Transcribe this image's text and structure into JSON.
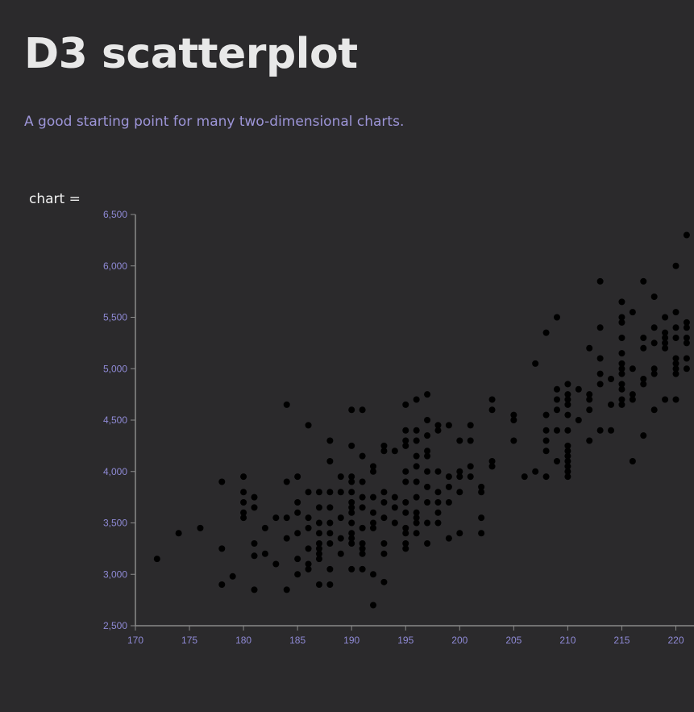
{
  "page": {
    "title": "D3 scatterplot",
    "subtitle": "A good starting point for many two-dimensional charts.",
    "cell_label": "chart ="
  },
  "colors": {
    "background": "#2b2a2c",
    "text": "#e8e8e8",
    "subtitle": "#9d95d8",
    "tick_label": "#8f8ad6",
    "axis": "#8a8a8a",
    "dot": "#000000"
  },
  "chart_data": {
    "type": "scatter",
    "title": "",
    "xlabel": "",
    "ylabel": "",
    "grid": false,
    "xlim": [
      170,
      221.5
    ],
    "ylim": [
      2500,
      6500
    ],
    "x_ticks": [
      170,
      175,
      180,
      185,
      190,
      195,
      200,
      205,
      210,
      215,
      220
    ],
    "y_ticks": [
      2500,
      3000,
      3500,
      4000,
      4500,
      5000,
      5500,
      6000,
      6500
    ],
    "x_tick_labels": [
      "170",
      "175",
      "180",
      "185",
      "190",
      "195",
      "200",
      "205",
      "210",
      "215",
      "220"
    ],
    "y_tick_labels": [
      "2,500",
      "3,000",
      "3,500",
      "4,000",
      "4,500",
      "5,000",
      "5,500",
      "6,000",
      "6,500"
    ],
    "points": [
      [
        172,
        3150
      ],
      [
        174,
        3400
      ],
      [
        176,
        3450
      ],
      [
        178,
        3250
      ],
      [
        178,
        3900
      ],
      [
        178,
        2900
      ],
      [
        179,
        2980
      ],
      [
        180,
        3950
      ],
      [
        180,
        3800
      ],
      [
        180,
        3700
      ],
      [
        180,
        3600
      ],
      [
        180,
        3550
      ],
      [
        181,
        3750
      ],
      [
        181,
        3650
      ],
      [
        181,
        3300
      ],
      [
        181,
        3180
      ],
      [
        181,
        2850
      ],
      [
        182,
        3200
      ],
      [
        182,
        3450
      ],
      [
        183,
        3550
      ],
      [
        183,
        3100
      ],
      [
        184,
        4650
      ],
      [
        184,
        3900
      ],
      [
        184,
        3550
      ],
      [
        184,
        3350
      ],
      [
        184,
        2850
      ],
      [
        185,
        3950
      ],
      [
        185,
        3700
      ],
      [
        185,
        3600
      ],
      [
        185,
        3400
      ],
      [
        185,
        3150
      ],
      [
        185,
        3000
      ],
      [
        186,
        4450
      ],
      [
        186,
        3800
      ],
      [
        186,
        3550
      ],
      [
        186,
        3450
      ],
      [
        186,
        3250
      ],
      [
        186,
        3100
      ],
      [
        186,
        3050
      ],
      [
        187,
        3800
      ],
      [
        187,
        3650
      ],
      [
        187,
        3500
      ],
      [
        187,
        3400
      ],
      [
        187,
        3300
      ],
      [
        187,
        3250
      ],
      [
        187,
        3200
      ],
      [
        187,
        3150
      ],
      [
        187,
        2900
      ],
      [
        188,
        4300
      ],
      [
        188,
        4100
      ],
      [
        188,
        3800
      ],
      [
        188,
        3650
      ],
      [
        188,
        3500
      ],
      [
        188,
        3400
      ],
      [
        188,
        3300
      ],
      [
        188,
        3050
      ],
      [
        188,
        2900
      ],
      [
        189,
        3950
      ],
      [
        189,
        3800
      ],
      [
        189,
        3550
      ],
      [
        189,
        3350
      ],
      [
        189,
        3200
      ],
      [
        190,
        4600
      ],
      [
        190,
        4250
      ],
      [
        190,
        3950
      ],
      [
        190,
        3900
      ],
      [
        190,
        3800
      ],
      [
        190,
        3700
      ],
      [
        190,
        3650
      ],
      [
        190,
        3600
      ],
      [
        190,
        3500
      ],
      [
        190,
        3400
      ],
      [
        190,
        3350
      ],
      [
        190,
        3300
      ],
      [
        190,
        3050
      ],
      [
        191,
        4600
      ],
      [
        191,
        4150
      ],
      [
        191,
        3900
      ],
      [
        191,
        3750
      ],
      [
        191,
        3650
      ],
      [
        191,
        3450
      ],
      [
        191,
        3300
      ],
      [
        191,
        3250
      ],
      [
        191,
        3200
      ],
      [
        191,
        3050
      ],
      [
        192,
        4050
      ],
      [
        192,
        4000
      ],
      [
        192,
        3750
      ],
      [
        192,
        3600
      ],
      [
        192,
        3500
      ],
      [
        192,
        3450
      ],
      [
        192,
        3000
      ],
      [
        192,
        2700
      ],
      [
        193,
        4250
      ],
      [
        193,
        4200
      ],
      [
        193,
        3800
      ],
      [
        193,
        3700
      ],
      [
        193,
        3550
      ],
      [
        193,
        3300
      ],
      [
        193,
        3200
      ],
      [
        193,
        2925
      ],
      [
        194,
        4200
      ],
      [
        194,
        3750
      ],
      [
        194,
        3650
      ],
      [
        194,
        3500
      ],
      [
        195,
        4650
      ],
      [
        195,
        4400
      ],
      [
        195,
        4300
      ],
      [
        195,
        4250
      ],
      [
        195,
        4000
      ],
      [
        195,
        3900
      ],
      [
        195,
        3700
      ],
      [
        195,
        3600
      ],
      [
        195,
        3450
      ],
      [
        195,
        3400
      ],
      [
        195,
        3300
      ],
      [
        195,
        3250
      ],
      [
        196,
        4700
      ],
      [
        196,
        4400
      ],
      [
        196,
        4300
      ],
      [
        196,
        4150
      ],
      [
        196,
        4050
      ],
      [
        196,
        3900
      ],
      [
        196,
        3750
      ],
      [
        196,
        3600
      ],
      [
        196,
        3550
      ],
      [
        196,
        3500
      ],
      [
        196,
        3400
      ],
      [
        197,
        4750
      ],
      [
        197,
        4500
      ],
      [
        197,
        4350
      ],
      [
        197,
        4200
      ],
      [
        197,
        4150
      ],
      [
        197,
        4000
      ],
      [
        197,
        3850
      ],
      [
        197,
        3700
      ],
      [
        197,
        3500
      ],
      [
        197,
        3300
      ],
      [
        198,
        4450
      ],
      [
        198,
        4400
      ],
      [
        198,
        4000
      ],
      [
        198,
        3800
      ],
      [
        198,
        3700
      ],
      [
        198,
        3600
      ],
      [
        198,
        3500
      ],
      [
        199,
        4450
      ],
      [
        199,
        3950
      ],
      [
        199,
        3850
      ],
      [
        199,
        3700
      ],
      [
        199,
        3350
      ],
      [
        200,
        4300
      ],
      [
        200,
        4000
      ],
      [
        200,
        3950
      ],
      [
        200,
        3800
      ],
      [
        200,
        3400
      ],
      [
        201,
        4450
      ],
      [
        201,
        4300
      ],
      [
        201,
        4050
      ],
      [
        201,
        3950
      ],
      [
        202,
        3850
      ],
      [
        202,
        3800
      ],
      [
        202,
        3550
      ],
      [
        202,
        3400
      ],
      [
        203,
        4700
      ],
      [
        203,
        4600
      ],
      [
        203,
        4100
      ],
      [
        203,
        4050
      ],
      [
        205,
        4550
      ],
      [
        205,
        4500
      ],
      [
        205,
        4300
      ],
      [
        206,
        3950
      ],
      [
        207,
        5050
      ],
      [
        207,
        4000
      ],
      [
        208,
        5350
      ],
      [
        208,
        4550
      ],
      [
        208,
        4400
      ],
      [
        208,
        4300
      ],
      [
        208,
        4200
      ],
      [
        208,
        3950
      ],
      [
        209,
        5500
      ],
      [
        209,
        4800
      ],
      [
        209,
        4700
      ],
      [
        209,
        4600
      ],
      [
        209,
        4400
      ],
      [
        209,
        4100
      ],
      [
        210,
        4850
      ],
      [
        210,
        4750
      ],
      [
        210,
        4700
      ],
      [
        210,
        4650
      ],
      [
        210,
        4550
      ],
      [
        210,
        4400
      ],
      [
        210,
        4250
      ],
      [
        210,
        4200
      ],
      [
        210,
        4150
      ],
      [
        210,
        4100
      ],
      [
        210,
        4050
      ],
      [
        210,
        4000
      ],
      [
        210,
        3950
      ],
      [
        211,
        4800
      ],
      [
        211,
        4500
      ],
      [
        212,
        5200
      ],
      [
        212,
        4750
      ],
      [
        212,
        4700
      ],
      [
        212,
        4600
      ],
      [
        212,
        4300
      ],
      [
        213,
        5850
      ],
      [
        213,
        5400
      ],
      [
        213,
        5100
      ],
      [
        213,
        4950
      ],
      [
        213,
        4850
      ],
      [
        213,
        4400
      ],
      [
        214,
        4900
      ],
      [
        214,
        4650
      ],
      [
        214,
        4400
      ],
      [
        215,
        5650
      ],
      [
        215,
        5500
      ],
      [
        215,
        5450
      ],
      [
        215,
        5300
      ],
      [
        215,
        5150
      ],
      [
        215,
        5050
      ],
      [
        215,
        5000
      ],
      [
        215,
        4950
      ],
      [
        215,
        4850
      ],
      [
        215,
        4800
      ],
      [
        215,
        4700
      ],
      [
        215,
        4650
      ],
      [
        216,
        5550
      ],
      [
        216,
        5000
      ],
      [
        216,
        4750
      ],
      [
        216,
        4700
      ],
      [
        216,
        4100
      ],
      [
        217,
        5850
      ],
      [
        217,
        5300
      ],
      [
        217,
        5200
      ],
      [
        217,
        4900
      ],
      [
        217,
        4850
      ],
      [
        217,
        4350
      ],
      [
        218,
        5700
      ],
      [
        218,
        5400
      ],
      [
        218,
        5250
      ],
      [
        218,
        5000
      ],
      [
        218,
        4950
      ],
      [
        218,
        4600
      ],
      [
        219,
        5500
      ],
      [
        219,
        5350
      ],
      [
        219,
        5300
      ],
      [
        219,
        5250
      ],
      [
        219,
        5200
      ],
      [
        219,
        4700
      ],
      [
        220,
        6000
      ],
      [
        220,
        5550
      ],
      [
        220,
        5400
      ],
      [
        220,
        5300
      ],
      [
        220,
        5100
      ],
      [
        220,
        5050
      ],
      [
        220,
        5000
      ],
      [
        220,
        4950
      ],
      [
        220,
        4700
      ],
      [
        221,
        6300
      ],
      [
        221,
        5450
      ],
      [
        221,
        5400
      ],
      [
        221,
        5300
      ],
      [
        221,
        5250
      ],
      [
        221,
        5100
      ],
      [
        221,
        5000
      ]
    ]
  }
}
